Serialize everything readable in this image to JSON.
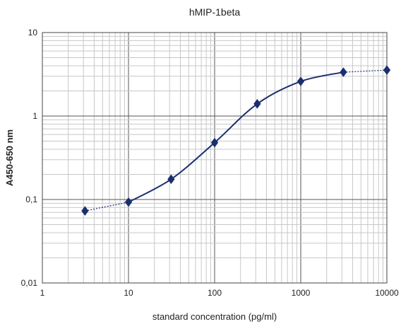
{
  "chart_data": {
    "type": "scatter",
    "title": "hMIP-1beta",
    "xlabel": "standard concentration (pg/ml)",
    "ylabel": "A450-650 nm",
    "x_scale": "log",
    "y_scale": "log",
    "xlim": [
      1,
      10000
    ],
    "ylim": [
      0.01,
      10
    ],
    "x_ticks": [
      "1",
      "10",
      "100",
      "1000",
      "10000"
    ],
    "y_ticks": [
      "0,01",
      "0,1",
      "1",
      "10"
    ],
    "grid": true,
    "legend": "none",
    "series": [
      {
        "color": "#1a2f6e",
        "marker": "diamond",
        "points": [
          {
            "x": 3.125,
            "y": 0.073
          },
          {
            "x": 10,
            "y": 0.093
          },
          {
            "x": 31.25,
            "y": 0.175
          },
          {
            "x": 100,
            "y": 0.48
          },
          {
            "x": 312.5,
            "y": 1.4
          },
          {
            "x": 1000,
            "y": 2.6
          },
          {
            "x": 3125,
            "y": 3.35
          },
          {
            "x": 10000,
            "y": 3.55
          }
        ],
        "fit_range": [
          10,
          3125
        ]
      }
    ]
  }
}
